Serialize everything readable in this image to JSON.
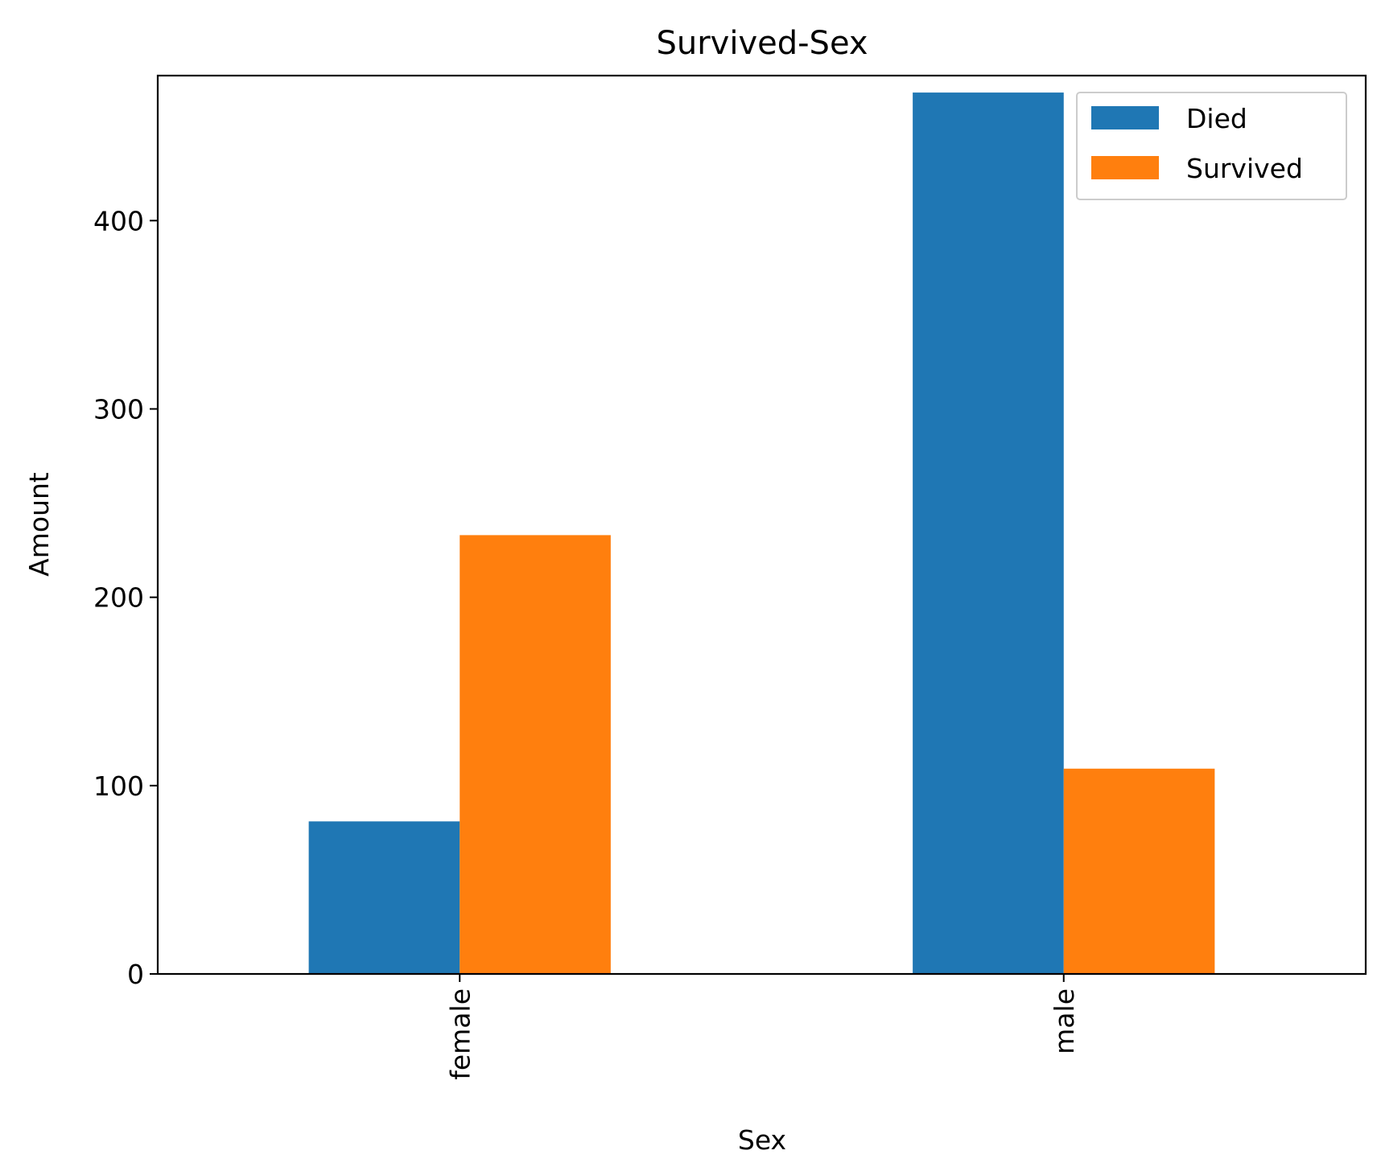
{
  "chart_data": {
    "type": "bar",
    "title": "Survived-Sex",
    "xlabel": "Sex",
    "ylabel": "Amount",
    "categories": [
      "female",
      "male"
    ],
    "series": [
      {
        "name": "Died",
        "values": [
          81,
          468
        ],
        "color": "#1f77b4"
      },
      {
        "name": "Survived",
        "values": [
          233,
          109
        ],
        "color": "#ff7f0e"
      }
    ],
    "ylim": [
      0,
      477
    ],
    "yticks": [
      0,
      100,
      200,
      300,
      400
    ],
    "grid": false,
    "legend_position": "top-right"
  }
}
